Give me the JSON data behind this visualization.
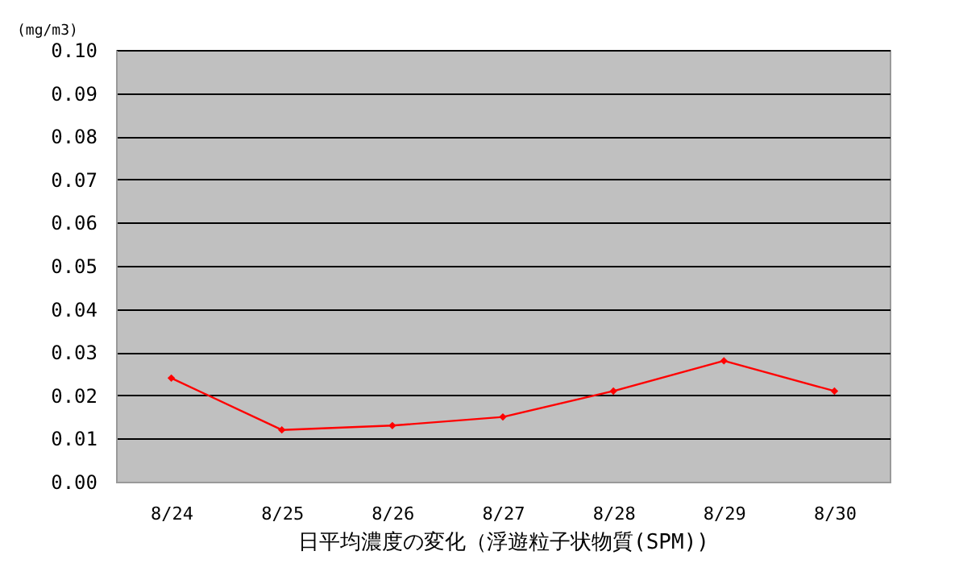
{
  "chart_data": {
    "type": "line",
    "xlabel": "日平均濃度の変化（浮遊粒子状物質(SPM))",
    "ylabel": "(mg/m3)",
    "categories": [
      "8/24",
      "8/25",
      "8/26",
      "8/27",
      "8/28",
      "8/29",
      "8/30"
    ],
    "series": [
      {
        "color": "#ff0000",
        "values": [
          0.024,
          0.012,
          0.013,
          0.015,
          0.021,
          0.028,
          0.021
        ]
      }
    ],
    "ylim": [
      0,
      0.1
    ],
    "yticks": [
      {
        "value": 0,
        "label": "0.00"
      },
      {
        "value": 0.01,
        "label": "0.01"
      },
      {
        "value": 0.02,
        "label": "0.02"
      },
      {
        "value": 0.03,
        "label": "0.03"
      },
      {
        "value": 0.04,
        "label": "0.04"
      },
      {
        "value": 0.05,
        "label": "0.05"
      },
      {
        "value": 0.06,
        "label": "0.06"
      },
      {
        "value": 0.07,
        "label": "0.07"
      },
      {
        "value": 0.08,
        "label": "0.08"
      },
      {
        "value": 0.09,
        "label": "0.09"
      },
      {
        "value": 0.1,
        "label": "0.10"
      }
    ],
    "grid": "y",
    "marker": "diamond",
    "line_style": "solid"
  }
}
